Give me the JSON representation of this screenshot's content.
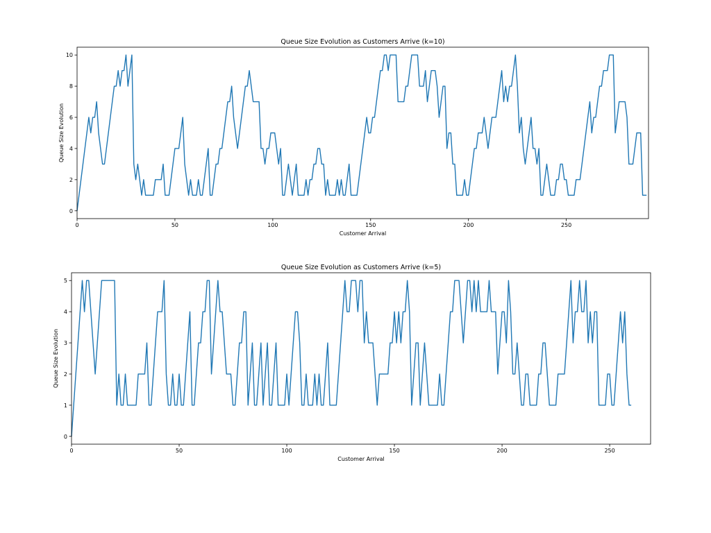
{
  "chart_data": [
    {
      "type": "line",
      "title": "Queue Size Evolution as Customers Arrive (k=10)",
      "xlabel": "Customer Arrival",
      "ylabel": "Queue Size Evolution",
      "xlim": [
        0,
        292
      ],
      "ylim": [
        -0.5,
        10.5
      ],
      "xticks": [
        0,
        50,
        100,
        150,
        200,
        250
      ],
      "yticks": [
        0,
        2,
        4,
        6,
        8,
        10
      ],
      "grid": false,
      "line_color": "#1f77b4",
      "series": [
        {
          "values": [
            0,
            1,
            2,
            3,
            4,
            5,
            6,
            5,
            6,
            6,
            7,
            5,
            4,
            3,
            3,
            4,
            5,
            6,
            7,
            8,
            8,
            9,
            8,
            9,
            9,
            10,
            8,
            9,
            10,
            3,
            2,
            3,
            2,
            1,
            2,
            1,
            1,
            1,
            1,
            1,
            2,
            2,
            2,
            2,
            3,
            1,
            1,
            1,
            2,
            3,
            4,
            4,
            4,
            5,
            6,
            3,
            2,
            1,
            2,
            1,
            1,
            1,
            2,
            1,
            1,
            2,
            3,
            4,
            1,
            1,
            2,
            3,
            3,
            4,
            4,
            5,
            6,
            7,
            7,
            8,
            6,
            5,
            4,
            5,
            6,
            7,
            8,
            8,
            9,
            8,
            7,
            7,
            7,
            7,
            4,
            4,
            3,
            4,
            4,
            5,
            5,
            5,
            4,
            3,
            4,
            1,
            1,
            2,
            3,
            2,
            1,
            2,
            3,
            1,
            1,
            1,
            1,
            2,
            1,
            2,
            2,
            3,
            3,
            4,
            4,
            3,
            3,
            1,
            2,
            1,
            1,
            1,
            1,
            2,
            1,
            2,
            1,
            1,
            2,
            3,
            1,
            1,
            1,
            1,
            2,
            3,
            4,
            5,
            6,
            5,
            5,
            6,
            6,
            7,
            8,
            9,
            9,
            10,
            10,
            9,
            10,
            10,
            10,
            10,
            7,
            7,
            7,
            7,
            8,
            8,
            9,
            10,
            10,
            10,
            10,
            8,
            8,
            8,
            9,
            7,
            8,
            9,
            9,
            9,
            8,
            6,
            7,
            8,
            8,
            4,
            5,
            5,
            3,
            3,
            1,
            1,
            1,
            1,
            2,
            1,
            1,
            2,
            3,
            4,
            4,
            5,
            5,
            5,
            6,
            5,
            4,
            5,
            6,
            6,
            6,
            7,
            8,
            9,
            7,
            8,
            7,
            8,
            8,
            9,
            10,
            8,
            5,
            6,
            4,
            3,
            4,
            5,
            6,
            4,
            4,
            3,
            4,
            1,
            1,
            2,
            3,
            2,
            1,
            1,
            1,
            2,
            2,
            3,
            3,
            2,
            2,
            1,
            1,
            1,
            1,
            2,
            2,
            2,
            3,
            4,
            5,
            6,
            7,
            5,
            6,
            6,
            7,
            8,
            8,
            9,
            9,
            9,
            10,
            10,
            10,
            5,
            6,
            7,
            7,
            7,
            7,
            6,
            3,
            3,
            3,
            4,
            5,
            5,
            5,
            1,
            1,
            1
          ]
        }
      ]
    },
    {
      "type": "line",
      "title": "Queue Size Evolution as Customers Arrive (k=5)",
      "xlabel": "Customer Arrival",
      "ylabel": "Queue Size Evolution",
      "xlim": [
        0,
        269
      ],
      "ylim": [
        -0.25,
        5.25
      ],
      "xticks": [
        0,
        50,
        100,
        150,
        200,
        250
      ],
      "yticks": [
        0,
        1,
        2,
        3,
        4,
        5
      ],
      "grid": false,
      "line_color": "#1f77b4",
      "series": [
        {
          "values": [
            0,
            1,
            2,
            3,
            4,
            5,
            4,
            5,
            5,
            4,
            3,
            2,
            3,
            4,
            5,
            5,
            5,
            5,
            5,
            5,
            5,
            1,
            2,
            1,
            1,
            2,
            1,
            1,
            1,
            1,
            1,
            2,
            2,
            2,
            2,
            3,
            1,
            1,
            2,
            3,
            4,
            4,
            4,
            5,
            2,
            1,
            1,
            2,
            1,
            1,
            2,
            1,
            1,
            2,
            3,
            4,
            1,
            1,
            2,
            3,
            3,
            4,
            4,
            5,
            5,
            2,
            3,
            4,
            5,
            4,
            4,
            3,
            2,
            2,
            2,
            1,
            1,
            2,
            3,
            3,
            4,
            4,
            1,
            2,
            3,
            1,
            1,
            2,
            3,
            1,
            2,
            3,
            1,
            1,
            2,
            3,
            1,
            1,
            1,
            1,
            2,
            1,
            2,
            3,
            4,
            4,
            3,
            1,
            1,
            2,
            1,
            1,
            1,
            2,
            1,
            2,
            1,
            1,
            2,
            3,
            1,
            1,
            1,
            1,
            2,
            3,
            4,
            5,
            4,
            4,
            5,
            5,
            5,
            4,
            5,
            5,
            3,
            4,
            3,
            3,
            3,
            2,
            1,
            2,
            2,
            2,
            2,
            2,
            3,
            3,
            4,
            3,
            4,
            3,
            4,
            4,
            5,
            4,
            1,
            2,
            3,
            3,
            1,
            2,
            3,
            2,
            1,
            1,
            1,
            1,
            1,
            2,
            1,
            1,
            2,
            3,
            4,
            4,
            5,
            5,
            5,
            4,
            3,
            4,
            5,
            5,
            4,
            5,
            4,
            5,
            4,
            4,
            4,
            4,
            5,
            4,
            4,
            4,
            2,
            3,
            4,
            4,
            3,
            5,
            4,
            2,
            2,
            3,
            2,
            1,
            1,
            2,
            2,
            1,
            1,
            1,
            1,
            2,
            2,
            3,
            3,
            2,
            1,
            1,
            1,
            1,
            2,
            2,
            2,
            2,
            3,
            4,
            5,
            3,
            4,
            4,
            5,
            4,
            4,
            5,
            3,
            4,
            3,
            4,
            4,
            1,
            1,
            1,
            1,
            2,
            2,
            1,
            1,
            2,
            3,
            4,
            3,
            4,
            2,
            1,
            1
          ]
        }
      ]
    }
  ]
}
